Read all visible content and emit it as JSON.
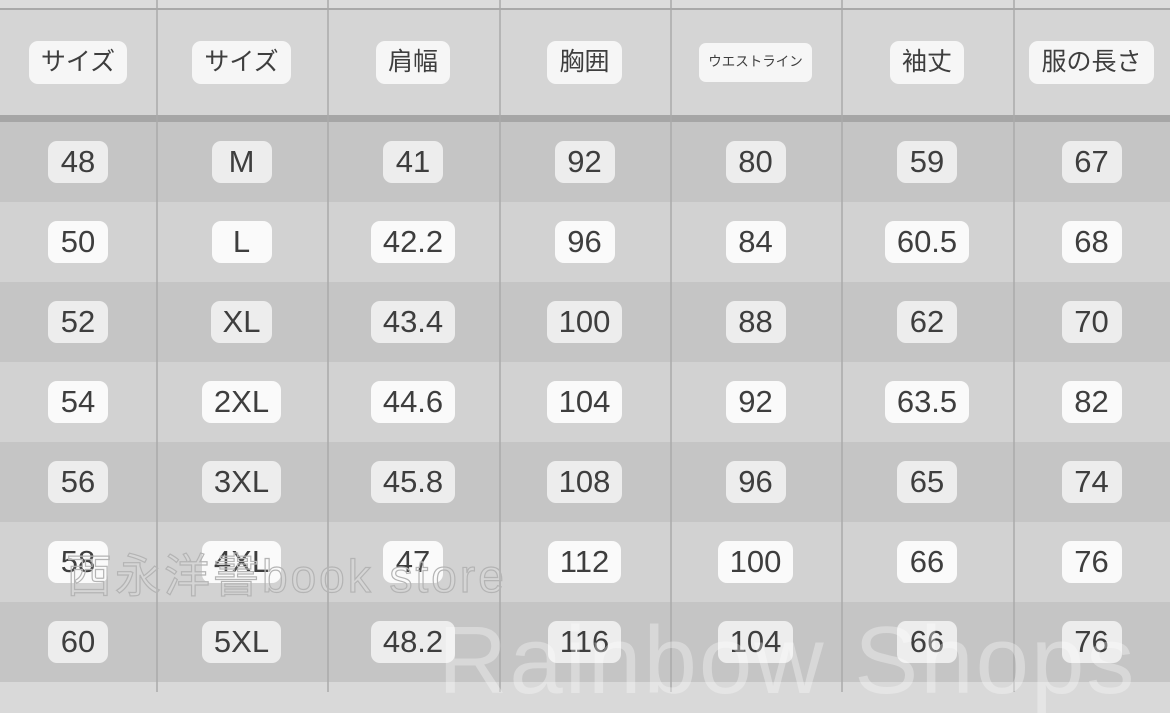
{
  "table": {
    "headers": [
      {
        "label": "サイズ",
        "small": false
      },
      {
        "label": "サイズ",
        "small": false
      },
      {
        "label": "肩幅",
        "small": false
      },
      {
        "label": "胸囲",
        "small": false
      },
      {
        "label": "ウエストライン",
        "small": true
      },
      {
        "label": "袖丈",
        "small": false
      },
      {
        "label": "服の長さ",
        "small": false
      }
    ],
    "rows": [
      [
        "48",
        "M",
        "41",
        "92",
        "80",
        "59",
        "67"
      ],
      [
        "50",
        "L",
        "42.2",
        "96",
        "84",
        "60.5",
        "68"
      ],
      [
        "52",
        "XL",
        "43.4",
        "100",
        "88",
        "62",
        "70"
      ],
      [
        "54",
        "2XL",
        "44.6",
        "104",
        "92",
        "63.5",
        "82"
      ],
      [
        "56",
        "3XL",
        "45.8",
        "108",
        "96",
        "65",
        "74"
      ],
      [
        "58",
        "4XL",
        "47",
        "112",
        "100",
        "66",
        "76"
      ],
      [
        "60",
        "5XL",
        "48.2",
        "116",
        "104",
        "66",
        "76"
      ]
    ]
  },
  "watermarks": {
    "store": "西永洋書book store",
    "brand": "Rainbow Shops"
  },
  "colors": {
    "page_bg": "#d9d9d9",
    "top_strip": "#dcdcdc",
    "header_bg": "#d5d5d5",
    "row_dark": "#c5c5c5",
    "row_light": "#d2d2d2",
    "separator": "#a6a6a6",
    "divider": "#a9a9a9",
    "chip_bg": "#f6f6f6",
    "text": "#3e3e3e",
    "watermark": "#b4b4b4"
  },
  "chart_data": {
    "type": "table",
    "title": "",
    "columns": [
      "サイズ",
      "サイズ",
      "肩幅",
      "胸囲",
      "ウエストライン",
      "袖丈",
      "服の長さ"
    ],
    "rows": [
      [
        48,
        "M",
        41,
        92,
        80,
        59,
        67
      ],
      [
        50,
        "L",
        42.2,
        96,
        84,
        60.5,
        68
      ],
      [
        52,
        "XL",
        43.4,
        100,
        88,
        62,
        70
      ],
      [
        54,
        "2XL",
        44.6,
        104,
        92,
        63.5,
        82
      ],
      [
        56,
        "3XL",
        45.8,
        108,
        96,
        65,
        74
      ],
      [
        58,
        "4XL",
        47,
        112,
        100,
        66,
        76
      ],
      [
        60,
        "5XL",
        48.2,
        116,
        104,
        66,
        76
      ]
    ],
    "layout_hints": {
      "striped_rows": true,
      "value_chips": true,
      "column_dividers": true
    }
  }
}
